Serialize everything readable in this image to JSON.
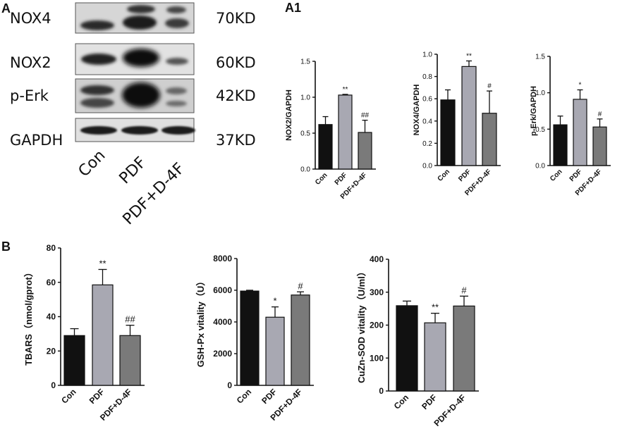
{
  "panels": {
    "a": "A",
    "a1": "A1",
    "b": "B"
  },
  "blot": {
    "rows": [
      {
        "protein": "NOX4",
        "kd": "70KD"
      },
      {
        "protein": "NOX2",
        "kd": "60KD"
      },
      {
        "protein": "p-Erk",
        "kd": "42KD"
      },
      {
        "protein": "GAPDH",
        "kd": "37KD"
      }
    ],
    "lanes": [
      "Con",
      "PDF",
      "PDF+D-4F"
    ]
  },
  "colors": {
    "Con": "#111111",
    "PDF": "#a8a8b2",
    "PDF+D-4F": "#7a7a7a"
  },
  "chart_data": [
    {
      "type": "bar",
      "id": "nox2",
      "categories": [
        "Con",
        "PDF",
        "PDF+D-4F"
      ],
      "values": [
        0.62,
        1.03,
        0.51
      ],
      "errors": [
        0.11,
        0.01,
        0.17
      ],
      "annotations": [
        "",
        "**",
        "##"
      ],
      "ylabel": "NOX2/GAPDH",
      "ylim": [
        0,
        1.5
      ],
      "ticks": [
        "0.0",
        "0.5",
        "1.0",
        "1.5"
      ]
    },
    {
      "type": "bar",
      "id": "nox4",
      "categories": [
        "Con",
        "PDF",
        "PDF+D-4F"
      ],
      "values": [
        0.59,
        0.89,
        0.47
      ],
      "errors": [
        0.09,
        0.05,
        0.2
      ],
      "annotations": [
        "",
        "**",
        "#"
      ],
      "ylabel": "NOX4/GAPDH",
      "ylim": [
        0,
        1.0
      ],
      "ticks": [
        "0.0",
        "0.2",
        "0.4",
        "0.6",
        "0.8",
        "1.0"
      ]
    },
    {
      "type": "bar",
      "id": "perk",
      "categories": [
        "Con",
        "PDF",
        "PDF+D-4F"
      ],
      "values": [
        0.56,
        0.91,
        0.53
      ],
      "errors": [
        0.12,
        0.13,
        0.11
      ],
      "annotations": [
        "",
        "*",
        "#"
      ],
      "ylabel": "p-Erk/GAPDH",
      "ylim": [
        0,
        1.5
      ],
      "ticks": [
        "0.0",
        "0.5",
        "1.0",
        "1.5"
      ]
    },
    {
      "type": "bar",
      "id": "tbars",
      "categories": [
        "Con",
        "PDF",
        "PDF+D-4F"
      ],
      "values": [
        29,
        58.5,
        29
      ],
      "errors": [
        4,
        9,
        6
      ],
      "annotations": [
        "",
        "**",
        "##"
      ],
      "ylabel": "TBARS（nmol/gprot）",
      "ylim": [
        0,
        80
      ],
      "ticks": [
        "0",
        "20",
        "40",
        "60",
        "80"
      ]
    },
    {
      "type": "bar",
      "id": "gshpx",
      "categories": [
        "Con",
        "PDF",
        "PDF+D-4F"
      ],
      "values": [
        5950,
        4300,
        5700
      ],
      "errors": [
        50,
        650,
        200
      ],
      "annotations": [
        "",
        "*",
        "#"
      ],
      "ylabel": "GSH-Px vitality（U）",
      "ylim": [
        0,
        8000
      ],
      "ticks": [
        "0",
        "2000",
        "4000",
        "6000",
        "8000"
      ]
    },
    {
      "type": "bar",
      "id": "cuznsod",
      "categories": [
        "Con",
        "PDF",
        "PDF+D-4F"
      ],
      "values": [
        259,
        207,
        258
      ],
      "errors": [
        14,
        29,
        30
      ],
      "annotations": [
        "",
        "**",
        "#"
      ],
      "ylabel": "CuZn-SOD vitality（U/ml）",
      "ylim": [
        0,
        400
      ],
      "ticks": [
        "0",
        "100",
        "200",
        "300",
        "400"
      ]
    }
  ]
}
